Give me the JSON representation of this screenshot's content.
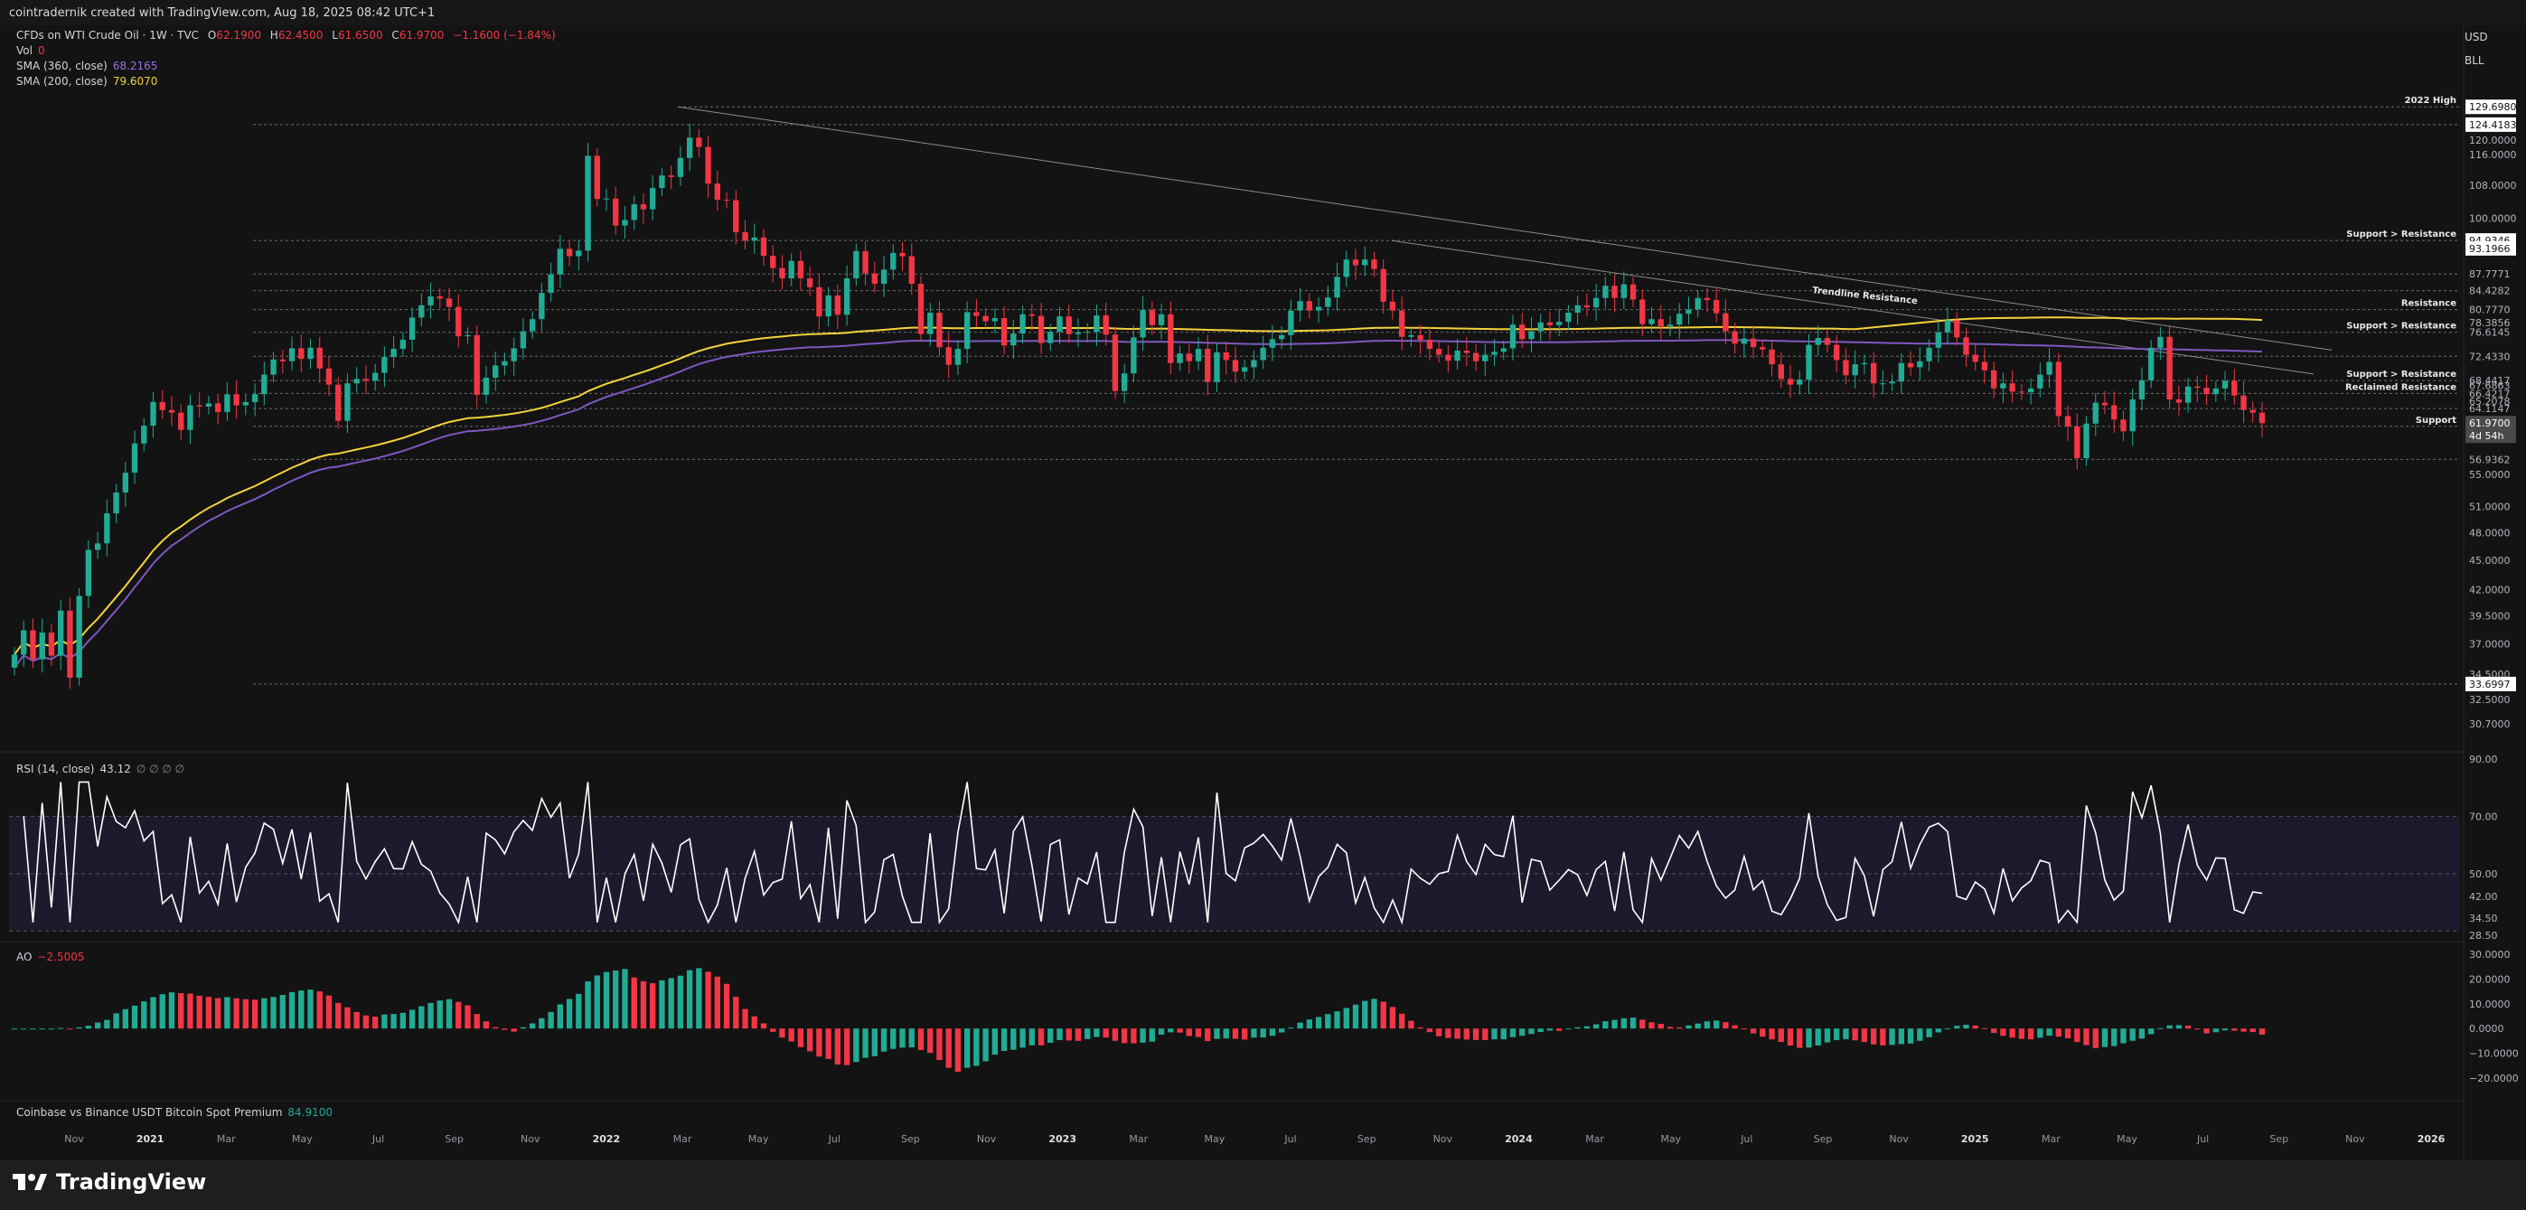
{
  "header": {
    "text": "cointradernik created with TradingView.com, Aug 18, 2025 08:42 UTC+1"
  },
  "legend": {
    "symbol": "CFDs on WTI Crude Oil · 1W · TVC",
    "open_label": "O",
    "open": "62.1900",
    "high_label": "H",
    "high": "62.4500",
    "low_label": "L",
    "low": "61.6500",
    "close_label": "C",
    "close": "61.9700",
    "change": "−1.1600 (−1.84%)",
    "vol_label": "Vol",
    "vol": "0",
    "sma360_label": "SMA (360, close)",
    "sma360": "68.2165",
    "sma200_label": "SMA (200, close)",
    "sma200": "79.6070"
  },
  "units": {
    "currency": "USD",
    "unit": "BLL"
  },
  "rsi_legend": {
    "label": "RSI (14, close)",
    "value": "43.12",
    "placeholders": "∅ ∅ ∅ ∅"
  },
  "ao_legend": {
    "label": "AO",
    "value": "−2.5005"
  },
  "premium_legend": {
    "label": "Coinbase vs Binance USDT Bitcoin Spot Premium",
    "value": "84.9100"
  },
  "footer": {
    "brand": "TradingView"
  },
  "colors": {
    "up": "#22ab94",
    "down": "#f23645",
    "sma200": "#f5d33c",
    "sma360": "#7e57c2",
    "rsi": "#ffffff",
    "band": "#1c1a2c"
  },
  "chart_data": {
    "type": "candlestick",
    "title": "CFDs on WTI Crude Oil · 1W · TVC",
    "x_labels": [
      "Nov",
      "2021",
      "Mar",
      "May",
      "Jul",
      "Sep",
      "Nov",
      "2022",
      "Mar",
      "May",
      "Jul",
      "Sep",
      "Nov",
      "2023",
      "Mar",
      "May",
      "Jul",
      "Sep",
      "Nov",
      "2024",
      "Mar",
      "May",
      "Jul",
      "Sep",
      "Nov",
      "2025",
      "Mar",
      "May",
      "Jul",
      "Sep",
      "Nov",
      "2026"
    ],
    "price_axis": {
      "scale": "log",
      "range": [
        29.5,
        140
      ],
      "ticks": [
        "120.0000",
        "116.0000",
        "108.0000",
        "100.0000",
        "87.7771",
        "84.4282",
        "80.7770",
        "78.3856",
        "76.6145",
        "72.4330",
        "68.4417",
        "67.6863",
        "66.4217",
        "65.2078",
        "64.1147",
        "61.5047",
        "56.9362",
        "55.0000",
        "51.0000",
        "48.0000",
        "45.0000",
        "42.0000",
        "39.5000",
        "37.0000",
        "34.5000",
        "32.5000",
        "30.7000"
      ],
      "highlight_ticks": [
        "129.6980",
        "124.4183",
        "94.9346",
        "93.1966",
        "33.6997"
      ],
      "last_price": "61.9700",
      "countdown": "4d 54h"
    },
    "levels": [
      {
        "price": 129.698,
        "label": "2022 High"
      },
      {
        "price": 124.4183,
        "label": ""
      },
      {
        "price": 94.9346,
        "label": "Support > Resistance"
      },
      {
        "price": 87.7771,
        "label": ""
      },
      {
        "price": 84.4282,
        "label": ""
      },
      {
        "price": 80.777,
        "label": "Resistance"
      },
      {
        "price": 76.6145,
        "label": "Support > Resistance"
      },
      {
        "price": 72.433,
        "label": ""
      },
      {
        "price": 68.4417,
        "label": "Support > Resistance"
      },
      {
        "price": 66.4217,
        "label": "Reclaimed Resistance"
      },
      {
        "price": 64.1147,
        "label": ""
      },
      {
        "price": 61.5047,
        "label": "Support"
      },
      {
        "price": 56.9362,
        "label": ""
      },
      {
        "price": 33.6997,
        "label": ""
      }
    ],
    "trendline_label": "Trendline Resistance",
    "rsi": {
      "label": "RSI (14, close)",
      "value": 43.12,
      "range": [
        28.5,
        90
      ],
      "ticks": [
        "90.00",
        "70.00",
        "50.00",
        "42.00",
        "34.50",
        "28.50"
      ],
      "band": [
        30,
        70
      ]
    },
    "ao": {
      "label": "AO",
      "value": -2.5005,
      "range": [
        -27,
        33
      ],
      "ticks": [
        "30.0000",
        "20.0000",
        "10.0000",
        "0.0000",
        "−10.0000",
        "−20.0000"
      ]
    },
    "sma_360": {
      "label": "SMA (360, close)",
      "value": 68.2165
    },
    "sma_200": {
      "label": "SMA (200, close)",
      "value": 79.607
    },
    "ohlc_anchor_prices": [
      36.1,
      38.2,
      35.7,
      38.0,
      36.0,
      40.0,
      34.2,
      41.4,
      46.1,
      46.8,
      50.2,
      52.7,
      55.2,
      59.1,
      61.6,
      65.1,
      63.9,
      63.5,
      61.0,
      64.6,
      64.4,
      64.9,
      63.6,
      66.3,
      64.6,
      65.1,
      66.3,
      69.4,
      71.9,
      71.6,
      73.8,
      72.0,
      73.9,
      70.4,
      67.8,
      62.3,
      68.0,
      68.7,
      68.4,
      69.7,
      72.3,
      73.7,
      75.3,
      79.3,
      81.6,
      83.3,
      82.9,
      81.3,
      75.9,
      76.1,
      66.2,
      68.9,
      70.9,
      71.6,
      73.8,
      76.8,
      79.0,
      84.0,
      87.7,
      93.1,
      91.5,
      92.7,
      115.7,
      104.6,
      104.7,
      98.3,
      99.6,
      103.3,
      102.1,
      107.3,
      110.5,
      110.1,
      115.1,
      120.7,
      118.1,
      108.4,
      104.4,
      104.3,
      96.8,
      94.9,
      95.6,
      91.6,
      89.0,
      86.9,
      90.5,
      86.9,
      85.1,
      79.5,
      83.5,
      79.8,
      86.9,
      92.6,
      87.9,
      85.8,
      88.7,
      92.2,
      91.5,
      85.8,
      76.3,
      80.2,
      74.0,
      71.0,
      73.7,
      80.3,
      79.6,
      78.6,
      79.2,
      74.3,
      76.4,
      79.9,
      79.6,
      74.7,
      76.7,
      79.5,
      76.3,
      76.6,
      76.7,
      79.7,
      76.2,
      66.8,
      69.6,
      75.7,
      80.7,
      77.9,
      79.9,
      71.3,
      72.9,
      71.6,
      73.7,
      68.2,
      73.1,
      71.8,
      69.9,
      70.6,
      71.8,
      73.9,
      75.4,
      76.1,
      80.6,
      82.4,
      80.6,
      81.3,
      83.1,
      87.2,
      90.8,
      89.6,
      90.8,
      88.8,
      82.3,
      80.6,
      75.8,
      76.1,
      75.3,
      73.7,
      72.7,
      71.7,
      73.4,
      73.0,
      71.6,
      72.7,
      73.2,
      73.8,
      78.0,
      75.4,
      76.8,
      78.4,
      77.9,
      78.5,
      80.2,
      81.6,
      81.2,
      83.0,
      85.4,
      83.0,
      85.7,
      82.7,
      78.1,
      79.0,
      77.7,
      78.0,
      80.0,
      80.8,
      83.0,
      82.6,
      80.1,
      76.8,
      74.6,
      75.5,
      74.0,
      73.6,
      71.1,
      68.7,
      67.8,
      68.6,
      74.4,
      75.6,
      74.4,
      71.8,
      69.3,
      71.1,
      71.3,
      68.0,
      68.0,
      68.3,
      71.3,
      70.6,
      71.6,
      73.9,
      76.6,
      78.8,
      75.7,
      72.7,
      71.5,
      70.1,
      67.2,
      68.0,
      66.7,
      66.6,
      67.2,
      69.4,
      71.5,
      63.0,
      61.5,
      57.1,
      61.9,
      65.0,
      64.6,
      62.5,
      60.8,
      65.5,
      68.5,
      73.9,
      75.8,
      65.5,
      65.0,
      67.5,
      67.3,
      66.3,
      67.2,
      68.4,
      66.1,
      63.9,
      63.5,
      61.97
    ]
  }
}
